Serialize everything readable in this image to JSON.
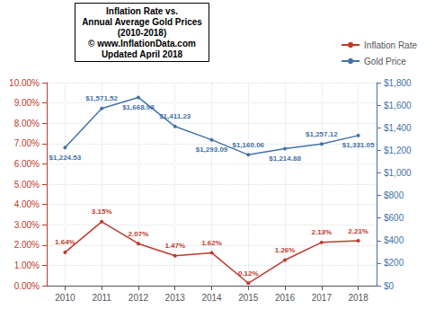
{
  "chart_data": {
    "type": "line",
    "title": "Inflation Rate vs.\nAnnual Average Gold Prices\n(2010-2018)\n© www.InflationData.com\nUpdated April 2018",
    "x": [
      2010,
      2011,
      2012,
      2013,
      2014,
      2015,
      2016,
      2017,
      2018
    ],
    "xlim": [
      2009.5,
      2018.5
    ],
    "xticks": [
      2010,
      2011,
      2012,
      2013,
      2014,
      2015,
      2016,
      2017,
      2018
    ],
    "ylim": [
      0.0,
      0.1
    ],
    "yticks": [
      {
        "value": 0.0,
        "label": "0.00%"
      },
      {
        "value": 0.01,
        "label": "1.00%"
      },
      {
        "value": 0.02,
        "label": "2.00%"
      },
      {
        "value": 0.03,
        "label": "3.00%"
      },
      {
        "value": 0.04,
        "label": "4.00%"
      },
      {
        "value": 0.05,
        "label": "5.00%"
      },
      {
        "value": 0.06,
        "label": "6.00%"
      },
      {
        "value": 0.07,
        "label": "7.00%"
      },
      {
        "value": 0.08,
        "label": "8.00%"
      },
      {
        "value": 0.09,
        "label": "9.00%"
      },
      {
        "value": 0.1,
        "label": "10.00%"
      }
    ],
    "y2lim": [
      0,
      1800
    ],
    "y2ticks": [
      {
        "value": 0,
        "label": "$0"
      },
      {
        "value": 200,
        "label": "$200"
      },
      {
        "value": 400,
        "label": "$400"
      },
      {
        "value": 600,
        "label": "$600"
      },
      {
        "value": 800,
        "label": "$800"
      },
      {
        "value": 1000,
        "label": "$1,000"
      },
      {
        "value": 1200,
        "label": "$1,200"
      },
      {
        "value": 1400,
        "label": "$1,400"
      },
      {
        "value": 1600,
        "label": "$1,600"
      },
      {
        "value": 1800,
        "label": "$1,800"
      }
    ],
    "grid": true,
    "legend": "upper right",
    "data_labels": true,
    "marker": "circle",
    "series": [
      {
        "name": "Inflation Rate",
        "color": "#c0392b",
        "values": [
          0.0164,
          0.0315,
          0.0207,
          0.0147,
          0.0162,
          0.0012,
          0.0126,
          0.0213,
          0.0221
        ],
        "value_labels": [
          "1.64%",
          "3.15%",
          "2.07%",
          "1.47%",
          "1.62%",
          "0.12%",
          "1.26%",
          "2.13%",
          "2.21%"
        ]
      },
      {
        "name": "Gold Price",
        "color": "#4472a8",
        "axis": "y2",
        "values": [
          1224.53,
          1571.52,
          1668.98,
          1411.23,
          1293.09,
          1160.06,
          1214.88,
          1257.12,
          1331.05
        ],
        "value_labels": [
          "$1,224.53",
          "$1,571.52",
          "$1,668.98",
          "$1,411.23",
          "$1,293.09",
          "$1,160.06",
          "$1,214.88",
          "$1,257.12",
          "$1,331.05"
        ]
      }
    ]
  }
}
